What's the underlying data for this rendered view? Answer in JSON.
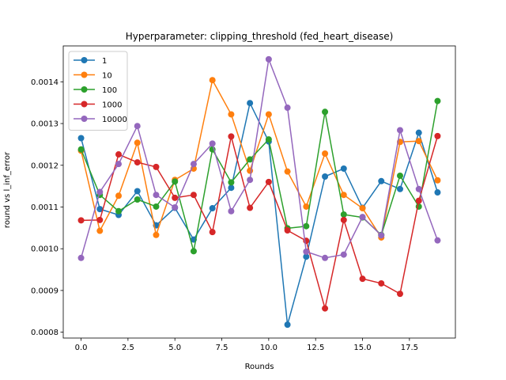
{
  "chart_data": {
    "type": "line",
    "title": "Hyperparameter: clipping_threshold (fed_heart_disease)",
    "xlabel": "Rounds",
    "ylabel": "round vs l_inf_error",
    "xlim": [
      -0.95,
      19.95
    ],
    "ylim": [
      0.000786,
      0.001486
    ],
    "xticks": [
      0,
      2.5,
      5,
      7.5,
      10,
      12.5,
      15,
      17.5
    ],
    "xtick_labels": [
      "0.0",
      "2.5",
      "5.0",
      "7.5",
      "10.0",
      "12.5",
      "15.0",
      "17.5"
    ],
    "yticks": [
      0.0008,
      0.0009,
      0.001,
      0.0011,
      0.0012,
      0.0013,
      0.0014
    ],
    "ytick_labels": [
      "0.0008",
      "0.0009",
      "0.0010",
      "0.0011",
      "0.0012",
      "0.0013",
      "0.0014"
    ],
    "legend_position": "top-left",
    "grid": false,
    "x": [
      0,
      1,
      2,
      3,
      4,
      5,
      6,
      7,
      8,
      9,
      10,
      11,
      12,
      13,
      14,
      15,
      16,
      17,
      18,
      19
    ],
    "series": [
      {
        "name": "1",
        "color": "#1f77b4",
        "values": [
          0.001265,
          0.001095,
          0.001081,
          0.001138,
          0.001056,
          0.001098,
          0.001022,
          0.001097,
          0.001146,
          0.001349,
          0.001257,
          0.000818,
          0.000981,
          0.001173,
          0.001192,
          0.001098,
          0.001162,
          0.001143,
          0.001278,
          0.001135
        ]
      },
      {
        "name": "10",
        "color": "#ff7f0e",
        "values": [
          0.001235,
          0.001043,
          0.001127,
          0.001254,
          0.001033,
          0.001165,
          0.001192,
          0.001404,
          0.001322,
          0.001187,
          0.001322,
          0.001185,
          0.001101,
          0.001228,
          0.001129,
          0.001097,
          0.001027,
          0.001256,
          0.001258,
          0.001164
        ]
      },
      {
        "name": "100",
        "color": "#2ca02c",
        "values": [
          0.001238,
          0.001129,
          0.00109,
          0.001118,
          0.001101,
          0.001161,
          0.000994,
          0.001238,
          0.001159,
          0.001214,
          0.001262,
          0.001049,
          0.001054,
          0.001328,
          0.001082,
          0.001075,
          0.001033,
          0.001175,
          0.001101,
          0.001354
        ]
      },
      {
        "name": "1000",
        "color": "#d62728",
        "values": [
          0.001068,
          0.001069,
          0.001226,
          0.001207,
          0.001196,
          0.001122,
          0.001129,
          0.00104,
          0.001269,
          0.001098,
          0.00116,
          0.001044,
          0.001019,
          0.000857,
          0.001069,
          0.000928,
          0.000917,
          0.000892,
          0.001115,
          0.00127
        ]
      },
      {
        "name": "10000",
        "color": "#9467bd",
        "values": [
          0.000978,
          0.001136,
          0.001203,
          0.001294,
          0.001129,
          0.001099,
          0.001203,
          0.001252,
          0.00109,
          0.001165,
          0.001454,
          0.001338,
          0.000993,
          0.000978,
          0.000986,
          0.001076,
          0.001032,
          0.001284,
          0.001143,
          0.00102
        ]
      }
    ]
  }
}
